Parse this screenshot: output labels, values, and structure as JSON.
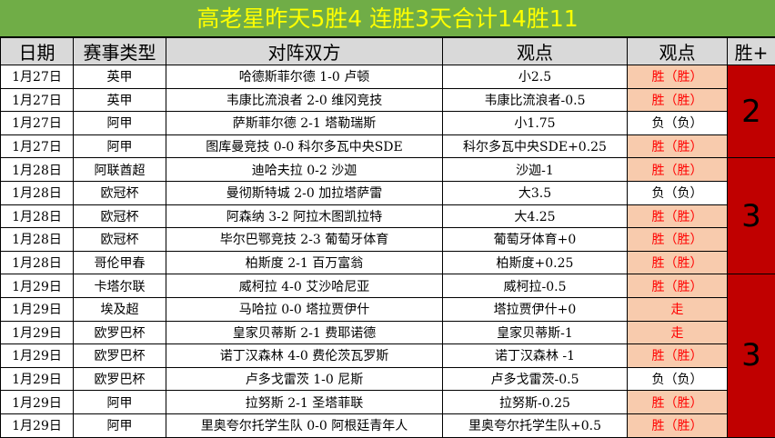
{
  "title": "高老星昨天5胜4  连胜3天合计14胜11",
  "columns": [
    "日期",
    "赛事类型",
    "对阵双方",
    "观点",
    "观点",
    "胜+"
  ],
  "colors": {
    "title_bg": "#70ad47",
    "title_text": "#ffff00",
    "header_bg": "#d9d9d9",
    "win_bg": "#f8cbad",
    "win_text": "#ff0000",
    "group_bg": "#c00000"
  },
  "rows": [
    {
      "date": "1月27日",
      "league": "英甲",
      "match": "哈德斯菲尔德 1-0 卢顿",
      "pick": "小2.5",
      "result": "胜（胜）",
      "win": true
    },
    {
      "date": "1月27日",
      "league": "英甲",
      "match": "韦康比流浪者 2-0 维冈竞技",
      "pick": "韦康比流浪者-0.5",
      "result": "胜（胜）",
      "win": true
    },
    {
      "date": "1月27日",
      "league": "阿甲",
      "match": "萨斯菲尔德 2-1 塔勒瑞斯",
      "pick": "小1.75",
      "result": "负（负）",
      "win": false
    },
    {
      "date": "1月27日",
      "league": "阿甲",
      "match": "图库曼竞技 0-0 科尔多瓦中央SDE",
      "pick": "科尔多瓦中央SDE+0.25",
      "result": "胜（胜）",
      "win": true
    },
    {
      "date": "1月28日",
      "league": "阿联酋超",
      "match": "迪哈夫拉 0-2 沙迦",
      "pick": "沙迦-1",
      "result": "胜（胜）",
      "win": true
    },
    {
      "date": "1月28日",
      "league": "欧冠杯",
      "match": "曼彻斯特城 2-0 加拉塔萨雷",
      "pick": "大3.5",
      "result": "负（负）",
      "win": false
    },
    {
      "date": "1月28日",
      "league": "欧冠杯",
      "match": "阿森纳 3-2 阿拉木图凯拉特",
      "pick": "大4.25",
      "result": "胜（胜）",
      "win": true
    },
    {
      "date": "1月28日",
      "league": "欧冠杯",
      "match": "毕尔巴鄂竞技 2-3 葡萄牙体育",
      "pick": "葡萄牙体育+0",
      "result": "胜（胜）",
      "win": true
    },
    {
      "date": "1月28日",
      "league": "哥伦甲春",
      "match": "柏斯度 2-1 百万富翁",
      "pick": "柏斯度+0.25",
      "result": "胜（胜）",
      "win": true
    },
    {
      "date": "1月29日",
      "league": "卡塔尔联",
      "match": "威柯拉 4-0 艾沙哈尼亚",
      "pick": "威柯拉-0.5",
      "result": "胜（胜）",
      "win": true
    },
    {
      "date": "1月29日",
      "league": "埃及超",
      "match": "马哈拉 0-0 塔拉贾伊什",
      "pick": "塔拉贾伊什+0",
      "result": "走",
      "win": true
    },
    {
      "date": "1月29日",
      "league": "欧罗巴杯",
      "match": "皇家贝蒂斯 2-1 费耶诺德",
      "pick": "皇家贝蒂斯-1",
      "result": "走",
      "win": true
    },
    {
      "date": "1月29日",
      "league": "欧罗巴杯",
      "match": "诺丁汉森林 4-0 费伦茨瓦罗斯",
      "pick": "诺丁汉森林 -1",
      "result": "胜（胜）",
      "win": true
    },
    {
      "date": "1月29日",
      "league": "欧罗巴杯",
      "match": "卢多戈雷茨 1-0 尼斯",
      "pick": "卢多戈雷茨-0.5",
      "result": "负（负）",
      "win": false
    },
    {
      "date": "1月29日",
      "league": "阿甲",
      "match": "拉努斯 2-1 圣塔菲联",
      "pick": "拉努斯-0.25",
      "result": "胜（胜）",
      "win": true
    },
    {
      "date": "1月29日",
      "league": "阿甲",
      "match": "里奥夸尔托学生队 0-0 阿根廷青年人",
      "pick": "里奥夸尔托学生队+0.5",
      "result": "胜（胜）",
      "win": true
    }
  ],
  "groups": [
    {
      "value": "2",
      "rows": 4
    },
    {
      "value": "3",
      "rows": 5
    },
    {
      "value": "3",
      "rows": 7
    }
  ]
}
